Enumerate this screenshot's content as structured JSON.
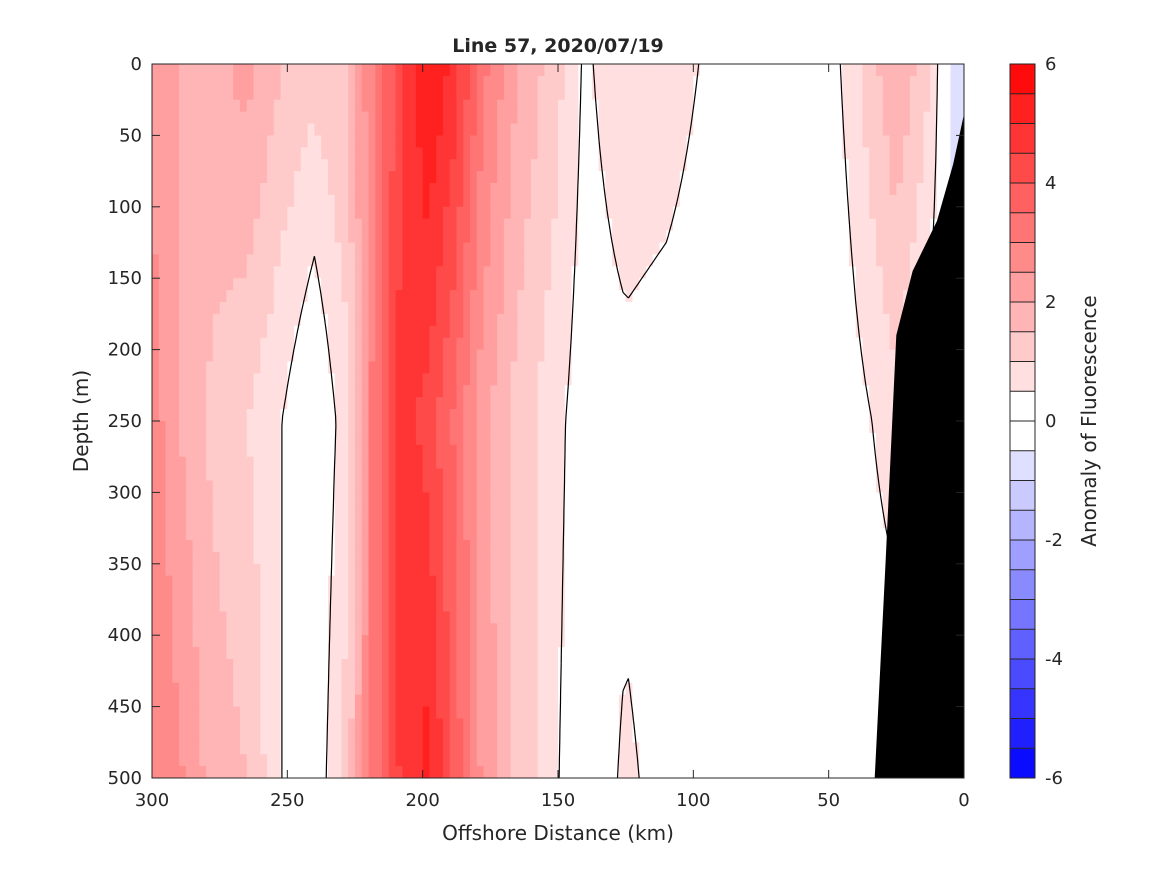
{
  "chart_data": {
    "type": "heatmap",
    "title": "Line 57, 2020/07/19",
    "xlabel": "Offshore Distance (km)",
    "ylabel": "Depth (m)",
    "colorbar_label": "Anomaly of Fluorescence",
    "xlim": [
      300,
      0
    ],
    "ylim": [
      0,
      500
    ],
    "x_reversed": true,
    "y_reversed": true,
    "x_ticks": [
      300,
      250,
      200,
      150,
      100,
      50,
      0
    ],
    "y_ticks": [
      0,
      50,
      100,
      150,
      200,
      250,
      300,
      350,
      400,
      450,
      500
    ],
    "colorbar_range": [
      -6,
      6
    ],
    "colorbar_ticks": [
      6,
      4,
      2,
      0,
      -2,
      -4,
      -6
    ],
    "contour_levels": [
      -6,
      -5.5,
      -5,
      -4.5,
      -4,
      -3.5,
      -3,
      -2.5,
      -2,
      -1.5,
      -1,
      -0.5,
      0,
      0.5,
      1,
      1.5,
      2,
      2.5,
      3,
      3.5,
      4,
      4.5,
      5,
      5.5,
      6
    ],
    "bathymetry_color": "#000000",
    "bathymetry_profile": [
      {
        "x": 33,
        "depth": 500
      },
      {
        "x": 29,
        "depth": 350
      },
      {
        "x": 25,
        "depth": 190
      },
      {
        "x": 19,
        "depth": 145
      },
      {
        "x": 10,
        "depth": 110
      },
      {
        "x": 4,
        "depth": 70
      },
      {
        "x": 0,
        "depth": 35
      }
    ],
    "column_profiles": [
      {
        "x": 300,
        "depth": [
          0,
          250,
          500
        ],
        "anomaly": [
          2.3,
          2.8,
          3.0
        ]
      },
      {
        "x": 290,
        "depth": [
          0,
          250,
          500
        ],
        "anomaly": [
          2.0,
          2.0,
          2.6
        ]
      },
      {
        "x": 278,
        "depth": [
          0,
          250,
          500
        ],
        "anomaly": [
          1.8,
          1.4,
          1.8
        ]
      },
      {
        "x": 265,
        "depth": [
          0,
          250,
          500
        ],
        "anomaly": [
          2.2,
          1.0,
          1.5
        ]
      },
      {
        "x": 252,
        "depth": [
          0,
          250,
          500
        ],
        "anomaly": [
          1.5,
          0.5,
          0.5
        ]
      },
      {
        "x": 240,
        "depth": [
          0,
          250,
          500
        ],
        "anomaly": [
          1.2,
          -0.1,
          0.1
        ]
      },
      {
        "x": 228,
        "depth": [
          0,
          250,
          500
        ],
        "anomaly": [
          1.5,
          0.8,
          1.2
        ]
      },
      {
        "x": 218,
        "depth": [
          0,
          250,
          500
        ],
        "anomaly": [
          3.0,
          3.2,
          3.2
        ]
      },
      {
        "x": 208,
        "depth": [
          0,
          250,
          500
        ],
        "anomaly": [
          4.3,
          4.8,
          4.6
        ]
      },
      {
        "x": 198,
        "depth": [
          0,
          250,
          500
        ],
        "anomaly": [
          5.6,
          4.3,
          5.2
        ]
      },
      {
        "x": 188,
        "depth": [
          0,
          250,
          500
        ],
        "anomaly": [
          4.8,
          3.4,
          3.8
        ]
      },
      {
        "x": 178,
        "depth": [
          0,
          250,
          500
        ],
        "anomaly": [
          3.2,
          2.2,
          2.4
        ]
      },
      {
        "x": 165,
        "depth": [
          0,
          250,
          500
        ],
        "anomaly": [
          2.0,
          1.3,
          1.4
        ]
      },
      {
        "x": 152,
        "depth": [
          0,
          250,
          500
        ],
        "anomaly": [
          1.3,
          0.7,
          0.6
        ]
      },
      {
        "x": 140,
        "depth": [
          0,
          250,
          500
        ],
        "anomaly": [
          0.4,
          0.2,
          0.1
        ]
      },
      {
        "x": 125,
        "depth": [
          0,
          250,
          500
        ],
        "anomaly": [
          0.9,
          0.3,
          0.6
        ]
      },
      {
        "x": 110,
        "depth": [
          0,
          250,
          500
        ],
        "anomaly": [
          0.8,
          0.2,
          0.3
        ]
      },
      {
        "x": 90,
        "depth": [
          0,
          250,
          500
        ],
        "anomaly": [
          0.3,
          0.1,
          0.1
        ]
      },
      {
        "x": 70,
        "depth": [
          0,
          250,
          500
        ],
        "anomaly": [
          0.4,
          0.1,
          0.2
        ]
      },
      {
        "x": 50,
        "depth": [
          0,
          250,
          500
        ],
        "anomaly": [
          0.2,
          -0.1,
          0.1
        ]
      },
      {
        "x": 40,
        "depth": [
          0,
          250,
          500
        ],
        "anomaly": [
          0.9,
          0.3,
          0.1
        ]
      },
      {
        "x": 25,
        "depth": [
          0,
          250,
          500
        ],
        "anomaly": [
          2.0,
          0.8,
          0.1
        ]
      },
      {
        "x": 12,
        "depth": [
          0,
          250,
          500
        ],
        "anomaly": [
          1.0,
          0.1,
          0.1
        ]
      },
      {
        "x": 3,
        "depth": [
          0,
          250,
          500
        ],
        "anomaly": [
          -1.0,
          0.0,
          0.0
        ]
      }
    ]
  }
}
